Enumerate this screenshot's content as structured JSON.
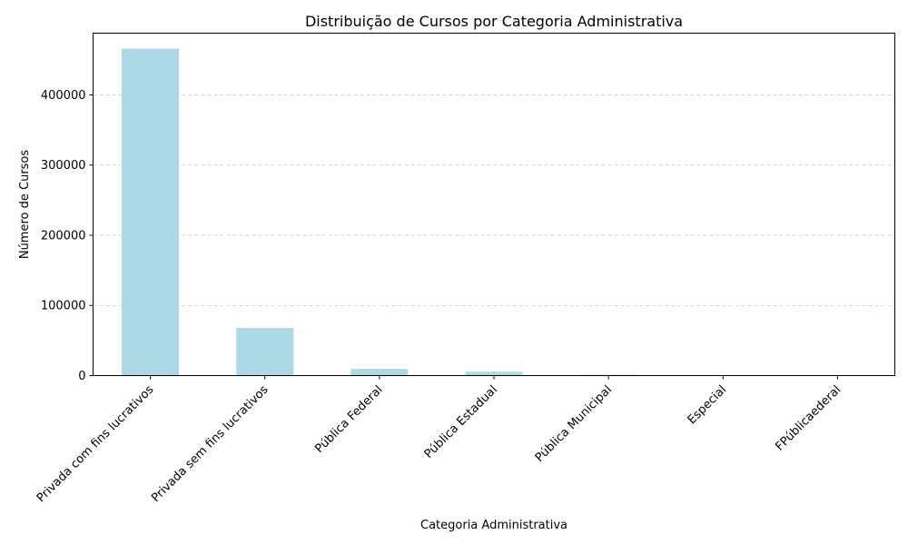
{
  "chart_data": {
    "type": "bar",
    "title": "Distribuição de Cursos por Categoria Administrativa",
    "xlabel": "Categoria Administrativa",
    "ylabel": "Número de Cursos",
    "categories": [
      "Privada com fins lucrativos",
      "Privada sem fins lucrativos",
      "Pública Federal",
      "Pública Estadual",
      "Pública Municipal",
      "Especial",
      "FPúblicaederal"
    ],
    "values": [
      466000,
      68000,
      9500,
      5500,
      1200,
      300,
      50
    ],
    "ylim": [
      0,
      488000
    ],
    "yticks": [
      0,
      100000,
      200000,
      300000,
      400000
    ],
    "ytick_labels": [
      "0",
      "100000",
      "200000",
      "300000",
      "400000"
    ],
    "grid": "y-dashed",
    "bar_color": "#add8e6",
    "legend": "none"
  }
}
